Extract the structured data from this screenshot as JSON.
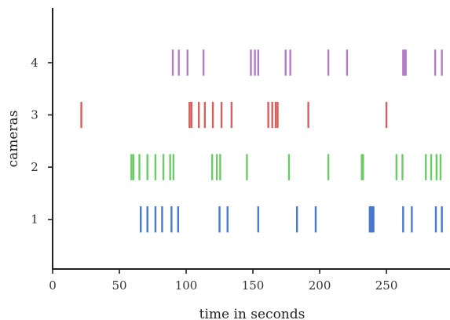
{
  "chart_data": {
    "type": "eventplot",
    "xlabel": "time in seconds",
    "ylabel": "cameras",
    "xlim": [
      0,
      297
    ],
    "ylim": [
      0.05,
      5.05
    ],
    "xticks": [
      0,
      50,
      100,
      150,
      200,
      250
    ],
    "xtick_labels": [
      "0",
      "50",
      "100",
      "150",
      "200",
      "250"
    ],
    "yticks": [
      1,
      2,
      3,
      4
    ],
    "ytick_labels": [
      "1",
      "2",
      "3",
      "4"
    ],
    "grid": false,
    "line_length": 0.5,
    "series": [
      {
        "color": "#4878cf",
        "y": 1,
        "events": [
          66,
          71,
          77,
          82,
          89,
          94,
          125,
          131,
          154,
          183,
          197,
          237.5,
          238.2,
          238.9,
          239.6,
          240.3,
          262.5,
          269,
          287,
          291.5
        ]
      },
      {
        "color": "#6acc65",
        "y": 2,
        "events": [
          59,
          60.5,
          65,
          71,
          77,
          83,
          88,
          90.5,
          119.5,
          123,
          125.5,
          145.5,
          177,
          206.5,
          231.5,
          232.5,
          257.5,
          262,
          279.5,
          283.5,
          287.5,
          290.5
        ]
      },
      {
        "color": "#d65f5f",
        "y": 3,
        "events": [
          21.5,
          102.5,
          104,
          109.5,
          114,
          120,
          126.5,
          134,
          161.5,
          164.5,
          167,
          168.5,
          191.5,
          250
        ]
      },
      {
        "color": "#b47cc7",
        "y": 4,
        "events": [
          90,
          94.5,
          101,
          113,
          148.5,
          151.5,
          154,
          174.5,
          178,
          206.5,
          220.5,
          262.5,
          263.5,
          264.5,
          286.5,
          291.5
        ]
      }
    ]
  }
}
